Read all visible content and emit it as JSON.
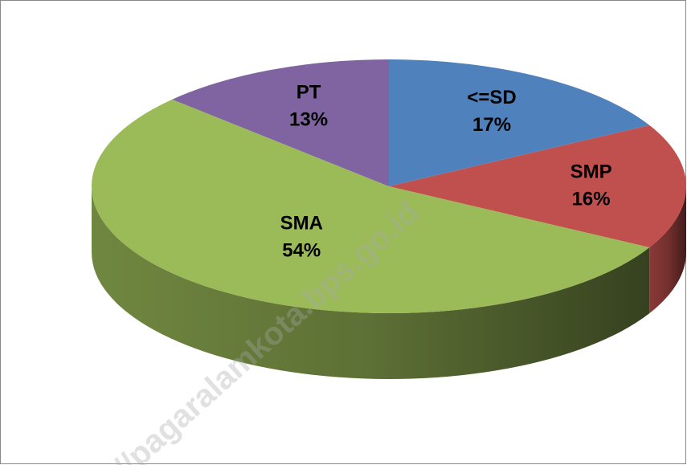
{
  "chart_data": {
    "type": "pie3d",
    "categories": [
      "<=SD",
      "SMP",
      "SMA",
      "PT"
    ],
    "values": [
      17,
      16,
      54,
      13
    ],
    "value_labels": [
      "17%",
      "16%",
      "54%",
      "13%"
    ],
    "colors": [
      "#4f81bd",
      "#c0504d",
      "#9bbb59",
      "#8064a2"
    ],
    "watermark": "//pagaralamkota.bps.go.id"
  }
}
